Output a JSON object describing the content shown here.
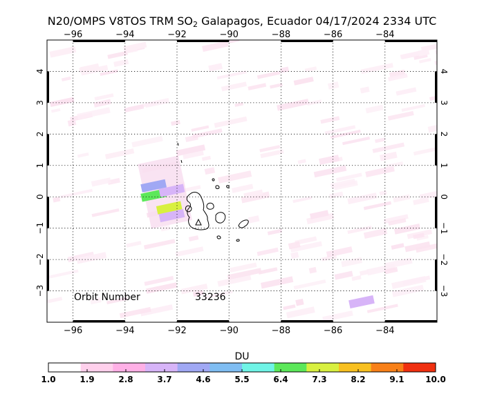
{
  "title": {
    "prefix": "N20/OMPS V8TOS TRM SO",
    "sub": "2",
    "suffix": " Galapagos, Ecuador 04/17/2024 2334 UTC"
  },
  "map": {
    "lon_range": [
      -97,
      -82
    ],
    "lat_range": [
      -4.0,
      5.0
    ],
    "lon_ticks": [
      -96,
      -94,
      -92,
      -90,
      -88,
      -86,
      -84
    ],
    "lat_ticks": [
      4,
      3,
      2,
      1,
      0,
      -1,
      -2,
      -3
    ],
    "gridlines": "dotted"
  },
  "annotation": {
    "orbit_label": "Orbit Number",
    "orbit_value": "33236"
  },
  "colorbar": {
    "label": "DU",
    "min": 1.0,
    "max": 10.0,
    "tick_labels": [
      "1.0",
      "1.9",
      "2.8",
      "3.7",
      "4.6",
      "5.5",
      "6.4",
      "7.3",
      "8.2",
      "9.1",
      "10.0"
    ],
    "colors": [
      "#ffffff",
      "#ffd0ec",
      "#ffb0e6",
      "#d7b4f8",
      "#a0a8f4",
      "#7fbdf2",
      "#6ff4e6",
      "#5ce85a",
      "#d8f040",
      "#f8c020",
      "#f88018",
      "#f03010"
    ]
  },
  "so2_pixels": [
    {
      "lon": -92.9,
      "lat": 0.05,
      "value": 6.9
    },
    {
      "lon": -92.9,
      "lat": 0.35,
      "value": 4.5
    },
    {
      "lon": -92.3,
      "lat": -0.35,
      "value": 7.0
    },
    {
      "lon": -92.2,
      "lat": 0.2,
      "value": 3.6
    },
    {
      "lon": -92.2,
      "lat": -0.6,
      "value": 3.7
    },
    {
      "lon": -84.9,
      "lat": -3.35,
      "value": 3.4
    }
  ]
}
